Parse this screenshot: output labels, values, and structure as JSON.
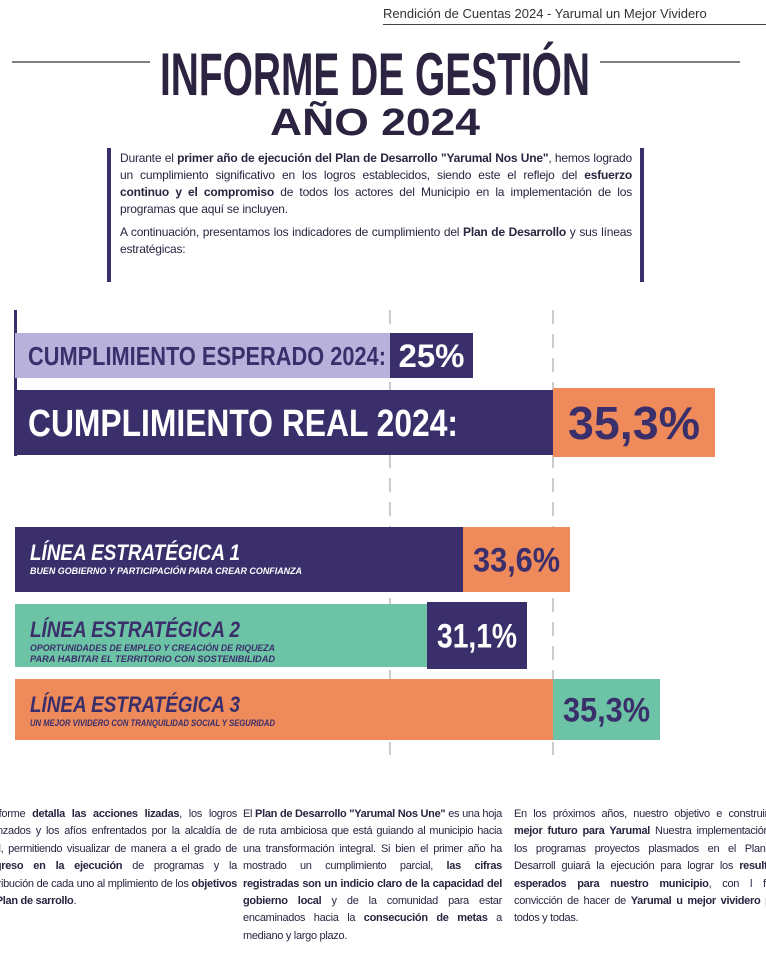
{
  "header": {
    "tagline": "Rendición de Cuentas 2024 - Yarumal un Mejor Vividero",
    "title": "INFORME DE GESTIÓN",
    "subtitle": "AÑO 2024"
  },
  "intro": [
    [
      {
        "text": "Durante el "
      },
      {
        "text": "primer año de ejecución del Plan de Desarrollo \"Yarumal Nos Une\"",
        "strong": true
      },
      {
        "text": ", hemos logrado un cumplimiento significativo en los logros establecidos, siendo este el reflejo del "
      },
      {
        "text": "esfuerzo continuo y el compromiso",
        "strong": true
      },
      {
        "text": " de todos los actores del Municipio en la implementación de los programas que aquí se incluyen."
      }
    ],
    [
      {
        "text": "A continuación, presentamos los indicadores de cumplimiento del "
      },
      {
        "text": "Plan de Desarrollo",
        "strong": true
      },
      {
        "text": " y sus líneas estratégicas:"
      }
    ]
  ],
  "cumplimiento": [
    {
      "label": "CUMPLIMIENTO ESPERADO 2024:",
      "value": "25%"
    },
    {
      "label": "CUMPLIMIENTO REAL 2024:",
      "value": "35,3%"
    }
  ],
  "lineas": [
    {
      "title": "LÍNEA ESTRATÉGICA 1",
      "description": [
        "BUEN GOBIERNO Y PARTICIPACIÓN PARA CREAR CONFIANZA"
      ],
      "value": "33,6%"
    },
    {
      "title": "LÍNEA ESTRATÉGICA 2",
      "description": [
        "OPORTUNIDADES DE EMPLEO Y CREACIÓN DE RIQUEZA",
        "PARA HABITAR EL TERRITORIO CON SOSTENIBILIDAD"
      ],
      "value": "31,1%"
    },
    {
      "title": "LÍNEA ESTRATÉGICA 3",
      "description": [
        "UN MEJOR VIVIDERO CON TRANQUILIDAD SOCIAL Y SEGURIDAD"
      ],
      "value": "35,3%"
    }
  ],
  "columns": [
    [
      {
        "text": "e informe "
      },
      {
        "text": "detalla las acciones lizadas",
        "strong": true
      },
      {
        "text": ", los logros alcanzados y los afíos enfrentados por la alcaldía de umal, permitiendo visualizar de manera a el grado de "
      },
      {
        "text": "progreso en la ejecución",
        "strong": true
      },
      {
        "text": " de programas y la contribución de cada uno al mplimiento de los "
      },
      {
        "text": "objetivos del Plan de sarrollo",
        "strong": true
      },
      {
        "text": "."
      }
    ],
    [
      {
        "text": "El "
      },
      {
        "text": "Plan de Desarrollo \"Yarumal Nos Une\"",
        "strong": true
      },
      {
        "text": " es una hoja de ruta ambiciosa que está guiando al municipio hacia una transformación integral. Si bien el primer año ha mostrado un cumplimiento parcial, "
      },
      {
        "text": "las cifras registradas son un indicio claro de la capacidad del gobierno local",
        "strong": true
      },
      {
        "text": " y de la comunidad para estar encaminados hacia la "
      },
      {
        "text": "consecución de metas",
        "strong": true
      },
      {
        "text": " a mediano y largo plazo."
      }
    ],
    [
      {
        "text": "En los próximos años, nuestro objetivo e construir un "
      },
      {
        "text": "mejor futuro para Yarumal",
        "strong": true
      },
      {
        "text": " Nuestra implementación de los programas proyectos plasmados en el Plan de Desarroll guiará la ejecución para lograr los "
      },
      {
        "text": "resultado esperados para nuestro municipio",
        "strong": true
      },
      {
        "text": ", con l firme convicción de hacer de "
      },
      {
        "text": "Yarumal u mejor vividero",
        "strong": true
      },
      {
        "text": " para todos y todas."
      }
    ]
  ]
}
